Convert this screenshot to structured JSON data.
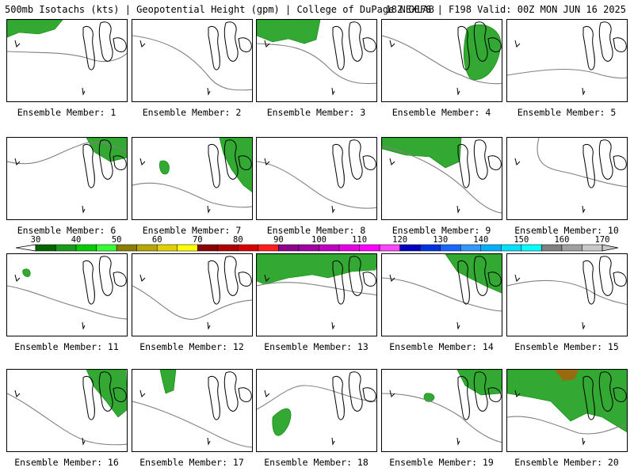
{
  "header": {
    "left": "500mb Isotachs (kts) | Geopotential Height (gpm) | College of DuPage NEXLAB",
    "right": "18Z GEFS | F198 Valid: 00Z MON JUN 16 2025"
  },
  "members": [
    "Ensemble Member: 1",
    "Ensemble Member: 2",
    "Ensemble Member: 3",
    "Ensemble Member: 4",
    "Ensemble Member: 5",
    "Ensemble Member: 6",
    "Ensemble Member: 7",
    "Ensemble Member: 8",
    "Ensemble Member: 9",
    "Ensemble Member: 10",
    "Ensemble Member: 11",
    "Ensemble Member: 12",
    "Ensemble Member: 13",
    "Ensemble Member: 14",
    "Ensemble Member: 15",
    "Ensemble Member: 16",
    "Ensemble Member: 17",
    "Ensemble Member: 18",
    "Ensemble Member: 19",
    "Ensemble Member: 20"
  ],
  "colorbar": {
    "labels": [
      "30",
      "40",
      "50",
      "60",
      "70",
      "80",
      "90",
      "100",
      "110",
      "120",
      "130",
      "140",
      "150",
      "160",
      "170"
    ],
    "colors": [
      "#006400",
      "#1a9a1a",
      "#00cc00",
      "#33ff33",
      "#8b7d00",
      "#b5a600",
      "#e0d000",
      "#ffff00",
      "#8b0000",
      "#b00000",
      "#d60000",
      "#ff1e1e",
      "#8b008b",
      "#a000a0",
      "#c000c0",
      "#e600e6",
      "#ff00ff",
      "#ff44ff",
      "#0000c0",
      "#0033e0",
      "#1a66ff",
      "#3399ff",
      "#00b0ff",
      "#00e0ff",
      "#00ffff",
      "#808080",
      "#a0a0a0",
      "#c8c8c8"
    ]
  },
  "colors": {
    "wind_low": "#33a833",
    "wind_mid": "#008800",
    "wind_high": "#9a6a10",
    "height_contour": "#808080",
    "coast": "#000000"
  }
}
